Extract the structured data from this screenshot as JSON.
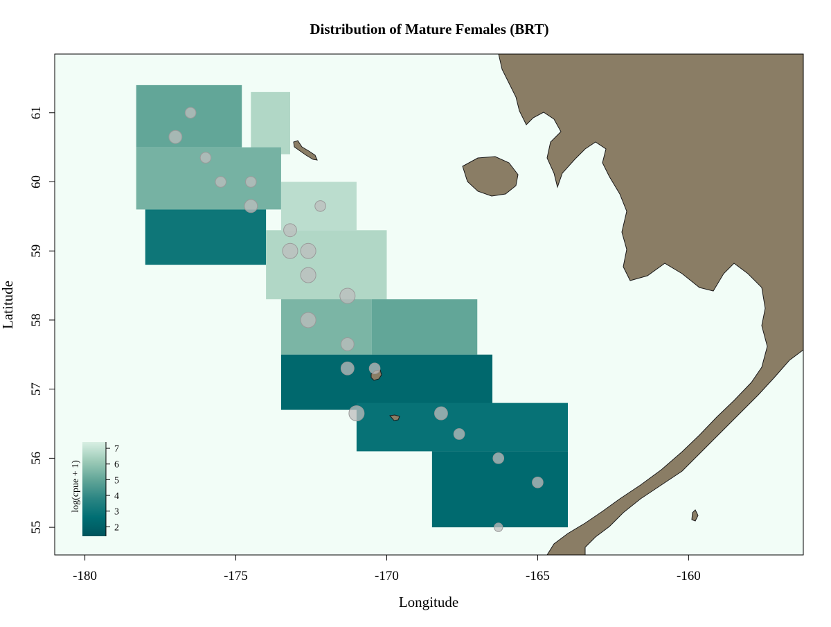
{
  "title": "Distribution of Mature Females (BRT)",
  "x_axis": {
    "label": "Longitude",
    "range": [
      -181,
      -156.2
    ],
    "ticks": [
      {
        "value": -180,
        "label": "-180"
      },
      {
        "value": -175,
        "label": "-175"
      },
      {
        "value": -170,
        "label": "-170"
      },
      {
        "value": -165,
        "label": "-165"
      },
      {
        "value": -160,
        "label": "-160"
      }
    ]
  },
  "y_axis": {
    "label": "Latitude",
    "range": [
      54.6,
      61.85
    ],
    "ticks": [
      {
        "value": 55,
        "label": "55"
      },
      {
        "value": 56,
        "label": "56"
      },
      {
        "value": 57,
        "label": "57"
      },
      {
        "value": 58,
        "label": "58"
      },
      {
        "value": 59,
        "label": "59"
      },
      {
        "value": 60,
        "label": "60"
      },
      {
        "value": 61,
        "label": "61"
      }
    ]
  },
  "legend": {
    "title": "log(cpue + 1)",
    "range": [
      1.4,
      7.4
    ],
    "ticks": [
      {
        "value": 2,
        "label": "2"
      },
      {
        "value": 3,
        "label": "3"
      },
      {
        "value": 4,
        "label": "4"
      },
      {
        "value": 5,
        "label": "5"
      },
      {
        "value": 6,
        "label": "6"
      },
      {
        "value": 7,
        "label": "7"
      }
    ],
    "colors": [
      "#00545c",
      "#006e73",
      "#2b8583",
      "#62a698",
      "#9dcbb8",
      "#d8efe3"
    ]
  },
  "colors": {
    "ocean": "#f2fdf7",
    "land": "#8a7d65",
    "land_border": "#1a1a1a",
    "sample_point": "#bdbdbd",
    "sample_point_border": "#9a9a9a"
  },
  "chart_data": {
    "type": "heatmap",
    "description_fields": [
      "lon",
      "lat",
      "value"
    ],
    "prediction_bands": [
      {
        "lat_min": 60.5,
        "lat_max": 61.4,
        "lon_min": -178.3,
        "lon_max": -174.8,
        "value": 5.0
      },
      {
        "lat_min": 60.4,
        "lat_max": 61.3,
        "lon_min": -174.5,
        "lon_max": -173.2,
        "value": 6.6
      },
      {
        "lat_min": 59.6,
        "lat_max": 60.5,
        "lon_min": -178.3,
        "lon_max": -173.5,
        "value": 5.4
      },
      {
        "lat_min": 59.3,
        "lat_max": 60.0,
        "lon_min": -173.5,
        "lon_max": -171.0,
        "value": 6.8
      },
      {
        "lat_min": 58.8,
        "lat_max": 59.6,
        "lon_min": -178.0,
        "lon_max": -174.0,
        "value": 3.0
      },
      {
        "lat_min": 58.3,
        "lat_max": 59.3,
        "lon_min": -174.0,
        "lon_max": -170.0,
        "value": 6.6
      },
      {
        "lat_min": 57.5,
        "lat_max": 58.3,
        "lon_min": -173.5,
        "lon_max": -170.5,
        "value": 5.5
      },
      {
        "lat_min": 57.5,
        "lat_max": 58.3,
        "lon_min": -170.5,
        "lon_max": -167.0,
        "value": 5.0
      },
      {
        "lat_min": 56.7,
        "lat_max": 57.5,
        "lon_min": -173.5,
        "lon_max": -166.5,
        "value": 2.3
      },
      {
        "lat_min": 56.1,
        "lat_max": 56.8,
        "lon_min": -171.0,
        "lon_max": -164.0,
        "value": 2.8
      },
      {
        "lat_min": 55.0,
        "lat_max": 56.1,
        "lon_min": -168.5,
        "lon_max": -164.0,
        "value": 2.4
      }
    ],
    "sample_points": [
      {
        "lon": -176.5,
        "lat": 61.0,
        "size": 3
      },
      {
        "lon": -177.0,
        "lat": 60.65,
        "size": 4
      },
      {
        "lon": -176.0,
        "lat": 60.35,
        "size": 3
      },
      {
        "lon": -175.5,
        "lat": 60.0,
        "size": 3
      },
      {
        "lon": -174.5,
        "lat": 60.0,
        "size": 3
      },
      {
        "lon": -174.5,
        "lat": 59.65,
        "size": 4
      },
      {
        "lon": -172.2,
        "lat": 59.65,
        "size": 3
      },
      {
        "lon": -173.2,
        "lat": 59.3,
        "size": 4
      },
      {
        "lon": -173.2,
        "lat": 59.0,
        "size": 5
      },
      {
        "lon": -172.6,
        "lat": 59.0,
        "size": 5
      },
      {
        "lon": -172.6,
        "lat": 58.65,
        "size": 5
      },
      {
        "lon": -171.3,
        "lat": 58.35,
        "size": 5
      },
      {
        "lon": -172.6,
        "lat": 58.0,
        "size": 5
      },
      {
        "lon": -171.3,
        "lat": 57.65,
        "size": 4
      },
      {
        "lon": -171.3,
        "lat": 57.3,
        "size": 4
      },
      {
        "lon": -170.4,
        "lat": 57.3,
        "size": 3
      },
      {
        "lon": -171.0,
        "lat": 56.65,
        "size": 5
      },
      {
        "lon": -168.2,
        "lat": 56.65,
        "size": 4
      },
      {
        "lon": -167.6,
        "lat": 56.35,
        "size": 3
      },
      {
        "lon": -166.3,
        "lat": 56.0,
        "size": 3
      },
      {
        "lon": -165.0,
        "lat": 55.65,
        "size": 3
      },
      {
        "lon": -166.3,
        "lat": 55.0,
        "size": 2
      }
    ]
  }
}
